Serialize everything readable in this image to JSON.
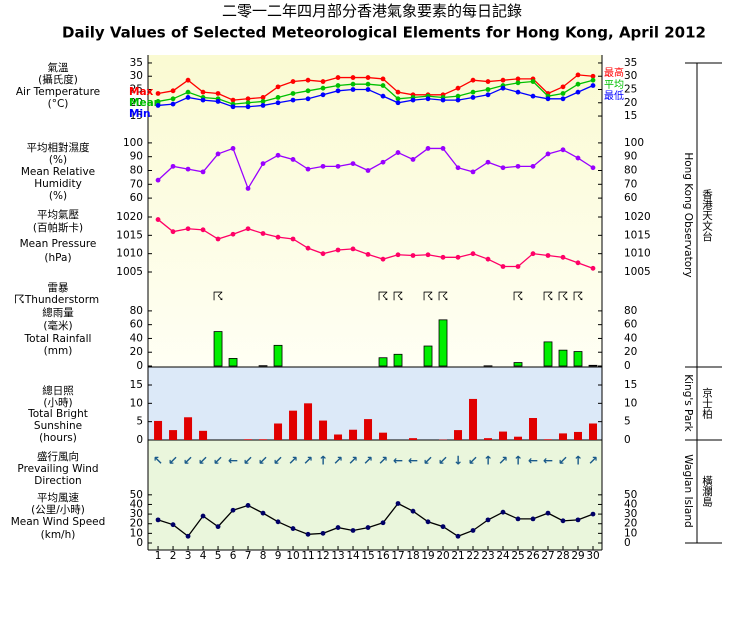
{
  "chart_data": [
    {
      "type": "line",
      "title_zh": "二零一二年四月部分香港氣象要素的每日記錄",
      "title": "Daily Values of Selected Meteorological Elements for Hong Kong, April 2012",
      "station": "Hong Kong Observatory",
      "station_zh": "香港天文台",
      "ylabel": [
        "氣溫",
        "(攝氏度)",
        "Air Temperature",
        "(°C)"
      ],
      "x": [
        1,
        2,
        3,
        4,
        5,
        6,
        7,
        8,
        9,
        10,
        11,
        12,
        13,
        14,
        15,
        16,
        17,
        18,
        19,
        20,
        21,
        22,
        23,
        24,
        25,
        26,
        27,
        28,
        29,
        30
      ],
      "xlim": [
        0.33,
        30.6
      ],
      "ylim": [
        12,
        38
      ],
      "yticks": [
        15,
        20,
        25,
        30,
        35
      ],
      "series": [
        {
          "name": "Max",
          "name_zh": "最高",
          "color": "#ff0000",
          "values": [
            23.5,
            24.5,
            28.5,
            24,
            23.5,
            21,
            21.5,
            22,
            26,
            28,
            28.5,
            28,
            29.5,
            29.5,
            29.5,
            29,
            24,
            23,
            23,
            23,
            25.5,
            28.5,
            28,
            28.5,
            29,
            29,
            23.5,
            26,
            30.5,
            30
          ]
        },
        {
          "name": "Mean",
          "name_zh": "平均",
          "color": "#00c000",
          "values": [
            20.5,
            21.5,
            24,
            22,
            21.5,
            19.5,
            20,
            20.5,
            22,
            23.5,
            24.5,
            25.5,
            26.5,
            27,
            27,
            26.5,
            21.5,
            22,
            22.5,
            22,
            22.5,
            24,
            25,
            26.5,
            27.5,
            28,
            22.5,
            23.5,
            27,
            28.5
          ]
        },
        {
          "name": "Min",
          "name_zh": "最低",
          "color": "#0000ff",
          "values": [
            19,
            19.5,
            22,
            21,
            20.5,
            18.5,
            18.5,
            19,
            20,
            21,
            21.5,
            23,
            24.5,
            25,
            25,
            22.5,
            20,
            21,
            21.5,
            21,
            21,
            22,
            23,
            25.5,
            24,
            22.5,
            21.5,
            21.5,
            24,
            26.5
          ]
        }
      ]
    },
    {
      "type": "line",
      "ylabel": [
        "平均相對濕度",
        "(%)",
        "Mean Relative",
        "Humidity",
        "(%)"
      ],
      "x": [
        1,
        2,
        3,
        4,
        5,
        6,
        7,
        8,
        9,
        10,
        11,
        12,
        13,
        14,
        15,
        16,
        17,
        18,
        19,
        20,
        21,
        22,
        23,
        24,
        25,
        26,
        27,
        28,
        29,
        30
      ],
      "xlim": [
        0.33,
        30.6
      ],
      "ylim": [
        55,
        105
      ],
      "yticks": [
        60,
        70,
        80,
        90,
        100
      ],
      "series": [
        {
          "color": "#9900ff",
          "values": [
            73,
            83,
            81,
            79,
            92,
            96,
            67,
            85,
            91,
            88,
            81,
            83,
            83,
            85,
            80,
            86,
            93,
            88,
            96,
            96,
            82,
            79,
            86,
            82,
            83,
            83,
            92,
            95,
            89,
            82
          ]
        }
      ]
    },
    {
      "type": "line",
      "ylabel": [
        "平均氣壓",
        "(百帕斯卡)",
        "Mean Pressure",
        "(hPa)"
      ],
      "x": [
        1,
        2,
        3,
        4,
        5,
        6,
        7,
        8,
        9,
        10,
        11,
        12,
        13,
        14,
        15,
        16,
        17,
        18,
        19,
        20,
        21,
        22,
        23,
        24,
        25,
        26,
        27,
        28,
        29,
        30
      ],
      "xlim": [
        0.33,
        30.6
      ],
      "ylim": [
        1002,
        1023
      ],
      "yticks": [
        1005,
        1010,
        1015,
        1020
      ],
      "series": [
        {
          "color": "#ff0066",
          "values": [
            1019.3,
            1016,
            1016.8,
            1016.5,
            1014,
            1015.3,
            1016.8,
            1015.5,
            1014.5,
            1014,
            1011.5,
            1010,
            1011,
            1011.3,
            1009.8,
            1008.5,
            1009.7,
            1009.5,
            1009.7,
            1009,
            1009,
            1010,
            1008.5,
            1006.5,
            1006.5,
            1010,
            1009.5,
            1009,
            1007.5,
            1006
          ]
        }
      ]
    },
    {
      "type": "symbols",
      "ylabel": [
        "雷暴",
        "Thunderstorm"
      ],
      "symbol": "☈",
      "x": [
        5,
        16,
        17,
        19,
        20,
        25,
        27,
        28,
        29
      ],
      "xlim": [
        0.33,
        30.6
      ]
    },
    {
      "type": "bar",
      "ylabel": [
        "總雨量",
        "(毫米)",
        "Total Rainfall",
        "(mm)"
      ],
      "color": "#00ee00",
      "x": [
        1,
        2,
        3,
        4,
        5,
        6,
        7,
        8,
        9,
        10,
        11,
        12,
        13,
        14,
        15,
        16,
        17,
        18,
        19,
        20,
        21,
        22,
        23,
        24,
        25,
        26,
        27,
        28,
        29,
        30
      ],
      "xlim": [
        0.33,
        30.6
      ],
      "ylim": [
        0,
        90
      ],
      "yticks": [
        0,
        20,
        40,
        60,
        80
      ],
      "values": [
        0,
        0,
        0,
        0,
        50,
        11,
        0,
        0.5,
        30,
        0,
        0,
        0,
        0,
        0,
        0,
        12,
        17,
        0,
        29,
        67,
        0,
        0,
        0.3,
        0,
        5,
        0,
        35,
        23,
        21,
        1
      ]
    },
    {
      "type": "bar",
      "station": "King's Park",
      "station_zh": "京士柏",
      "ylabel": [
        "總日照",
        "(小時)",
        "Total Bright",
        "Sunshine",
        "(hours)"
      ],
      "color": "#e00000",
      "x": [
        1,
        2,
        3,
        4,
        5,
        6,
        7,
        8,
        9,
        10,
        11,
        12,
        13,
        14,
        15,
        16,
        17,
        18,
        19,
        20,
        21,
        22,
        23,
        24,
        25,
        26,
        27,
        28,
        29,
        30
      ],
      "xlim": [
        0.33,
        30.6
      ],
      "ylim": [
        0,
        18
      ],
      "yticks": [
        0,
        5,
        10,
        15
      ],
      "values": [
        5.2,
        2.7,
        6.2,
        2.5,
        0,
        0,
        0.2,
        0.2,
        4.5,
        8,
        10,
        5.3,
        1.5,
        2.8,
        5.7,
        2,
        0,
        0.5,
        0,
        0.1,
        2.7,
        11.2,
        0.5,
        2.3,
        0.9,
        6,
        0.2,
        1.8,
        2.2,
        4.5
      ]
    },
    {
      "type": "arrows",
      "station": "Waglan Island",
      "station_zh": "橫瀾島",
      "ylabel": [
        "盛行風向",
        "Prevailing Wind",
        "Direction"
      ],
      "x": [
        1,
        2,
        3,
        4,
        5,
        6,
        7,
        8,
        9,
        10,
        11,
        12,
        13,
        14,
        15,
        16,
        17,
        18,
        19,
        20,
        21,
        22,
        23,
        24,
        25,
        26,
        27,
        28,
        29,
        30
      ],
      "xlim": [
        0.33,
        30.6
      ],
      "values": [
        "↖",
        "↙",
        "↙",
        "↙",
        "↙",
        "←",
        "↙",
        "↙",
        "↙",
        "↗",
        "↗",
        "↑",
        "↗",
        "↗",
        "↗",
        "↗",
        "←",
        "←",
        "↙",
        "↙",
        "↓",
        "↙",
        "↑",
        "↗",
        "↑",
        "←",
        "←",
        "↙",
        "↑",
        "↗"
      ]
    },
    {
      "type": "line",
      "ylabel": [
        "平均風速",
        "(公里/小時)",
        "Mean Wind Speed",
        "(km/h)"
      ],
      "x": [
        1,
        2,
        3,
        4,
        5,
        6,
        7,
        8,
        9,
        10,
        11,
        12,
        13,
        14,
        15,
        16,
        17,
        18,
        19,
        20,
        21,
        22,
        23,
        24,
        25,
        26,
        27,
        28,
        29,
        30
      ],
      "xlim": [
        0.33,
        30.6
      ],
      "ylim": [
        0,
        55
      ],
      "yticks": [
        0,
        10,
        20,
        30,
        40,
        50
      ],
      "series": [
        {
          "color": "#000000",
          "marker": "#000066",
          "values": [
            24,
            19,
            7,
            28,
            17,
            34,
            39,
            31,
            22,
            15,
            9,
            10,
            16,
            13,
            16,
            21,
            41,
            33,
            22,
            17,
            7,
            13,
            24,
            32,
            25,
            25,
            31,
            23,
            24,
            30
          ]
        }
      ]
    }
  ]
}
